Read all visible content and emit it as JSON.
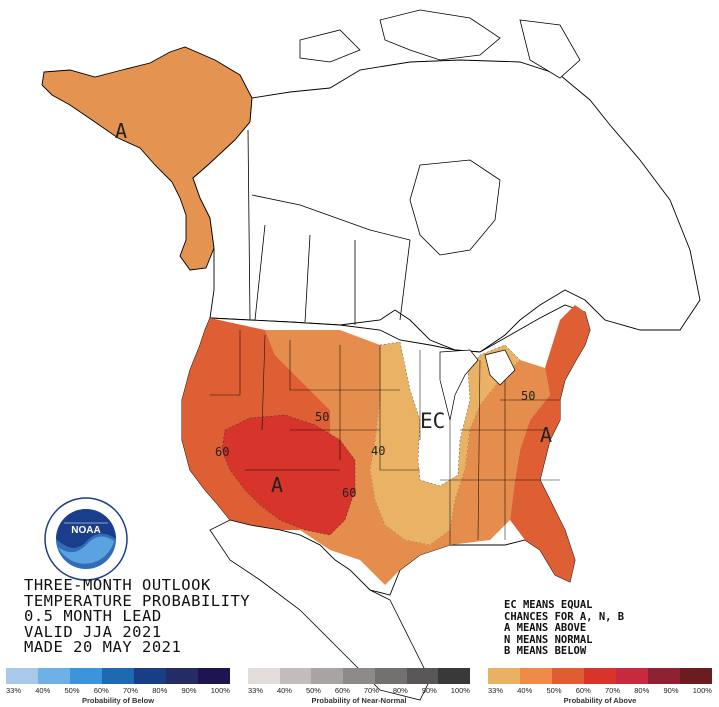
{
  "title_lines": [
    "THREE-MONTH OUTLOOK",
    "TEMPERATURE PROBABILITY",
    "0.5 MONTH LEAD",
    "VALID JJA 2021",
    "MADE 20 MAY 2021"
  ],
  "legend_lines": [
    "EC MEANS EQUAL",
    "CHANCES FOR A, N, B",
    "A MEANS ABOVE",
    "N MEANS NORMAL",
    "B MEANS BELOW"
  ],
  "map_labels": {
    "ec": "EC",
    "a_alaska": "A",
    "a_southwest": "A",
    "a_east": "A",
    "c50_west": "50",
    "c50_east": "50",
    "c60_west": "60",
    "c60_south": "60",
    "c40": "40"
  },
  "logo": {
    "text": "NOAA",
    "ring_text": "NATIONAL OCEANIC AND ATMOSPHERIC ADMINISTRATION · U.S. DEPARTMENT OF COMMERCE"
  },
  "scales": {
    "below": {
      "caption": "Probability of Below",
      "ticks": [
        "33%",
        "40%",
        "50%",
        "60%",
        "70%",
        "80%",
        "90%",
        "100%"
      ],
      "colors": [
        "#a8c9ea",
        "#6fb0e6",
        "#3c95db",
        "#1d6ab1",
        "#183f86",
        "#232c63",
        "#1e1452"
      ]
    },
    "normal": {
      "caption": "Probability of Near-Normal",
      "ticks": [
        "33%",
        "40%",
        "50%",
        "60%",
        "70%",
        "80%",
        "90%",
        "100%"
      ],
      "colors": [
        "#e2dcdb",
        "#c2bcbc",
        "#a9a4a4",
        "#8e8a8a",
        "#737070",
        "#585656",
        "#3a3939"
      ]
    },
    "above": {
      "caption": "Probability of Above",
      "ticks": [
        "33%",
        "40%",
        "50%",
        "60%",
        "70%",
        "80%",
        "90%",
        "100%"
      ],
      "colors": [
        "#e8b163",
        "#f08a48",
        "#e05c31",
        "#d8342a",
        "#c7293e",
        "#8e2232",
        "#6b1c1e"
      ]
    }
  },
  "colors": {
    "above_33": "#e9b265",
    "above_40": "#e58d4c",
    "above_50": "#df5f34",
    "above_60": "#d7342b",
    "outline": "#000000"
  }
}
